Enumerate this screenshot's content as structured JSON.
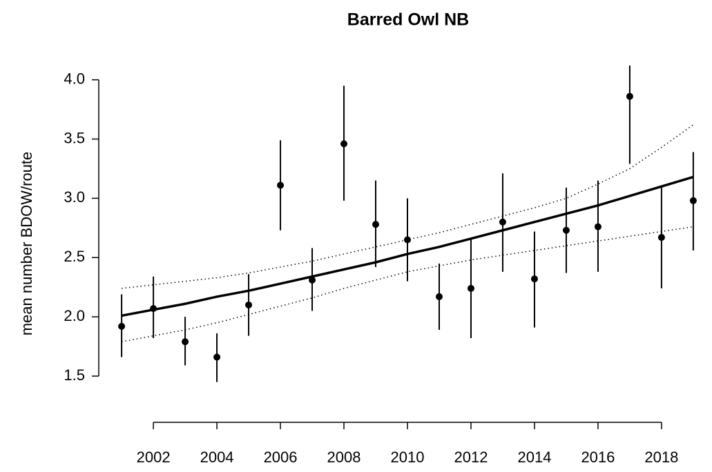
{
  "chart_data": {
    "type": "errorbar-trend",
    "title": "Barred Owl NB",
    "y_label": "mean number BDOW/route",
    "x": [
      2001,
      2002,
      2003,
      2004,
      2005,
      2006,
      2007,
      2008,
      2009,
      2010,
      2011,
      2012,
      2013,
      2014,
      2015,
      2016,
      2017,
      2018,
      2019
    ],
    "points": {
      "color": "#000000",
      "values": [
        1.92,
        2.07,
        1.79,
        1.66,
        2.1,
        3.11,
        2.31,
        3.46,
        2.78,
        2.65,
        2.17,
        2.24,
        2.8,
        2.32,
        2.73,
        2.76,
        3.86,
        2.67,
        2.98
      ],
      "lower": [
        1.66,
        1.82,
        1.59,
        1.45,
        1.84,
        2.73,
        2.05,
        2.98,
        2.42,
        2.3,
        1.89,
        1.82,
        2.38,
        1.91,
        2.37,
        2.38,
        3.29,
        2.24,
        2.56
      ],
      "upper": [
        2.19,
        2.34,
        2.0,
        1.86,
        2.36,
        3.49,
        2.58,
        3.95,
        3.15,
        3.0,
        2.45,
        2.66,
        3.21,
        2.72,
        3.09,
        3.15,
        4.12,
        3.1,
        3.39
      ]
    },
    "trend": {
      "color": "#000000",
      "values": [
        2.01,
        2.06,
        2.11,
        2.17,
        2.22,
        2.28,
        2.34,
        2.4,
        2.46,
        2.53,
        2.59,
        2.66,
        2.73,
        2.8,
        2.87,
        2.94,
        3.02,
        3.1,
        3.18
      ],
      "upper": [
        2.24,
        2.27,
        2.3,
        2.33,
        2.37,
        2.42,
        2.47,
        2.53,
        2.59,
        2.65,
        2.71,
        2.78,
        2.85,
        2.92,
        3.0,
        3.12,
        3.25,
        3.43,
        3.62
      ],
      "lower": [
        1.79,
        1.84,
        1.89,
        1.95,
        2.02,
        2.09,
        2.16,
        2.24,
        2.31,
        2.38,
        2.43,
        2.48,
        2.52,
        2.56,
        2.6,
        2.64,
        2.68,
        2.72,
        2.76
      ]
    },
    "xlim": [
      2000.28,
      2019.72
    ],
    "ylim": [
      1.11,
      4.12
    ],
    "xticks": [
      2002,
      2004,
      2006,
      2008,
      2010,
      2012,
      2014,
      2016,
      2018
    ],
    "yticks": [
      1.5,
      {
        "value": 2,
        "label": "2.0"
      },
      2.5,
      {
        "value": 3,
        "label": "3.0"
      },
      3.5,
      {
        "value": 4,
        "label": "4.0"
      }
    ]
  }
}
